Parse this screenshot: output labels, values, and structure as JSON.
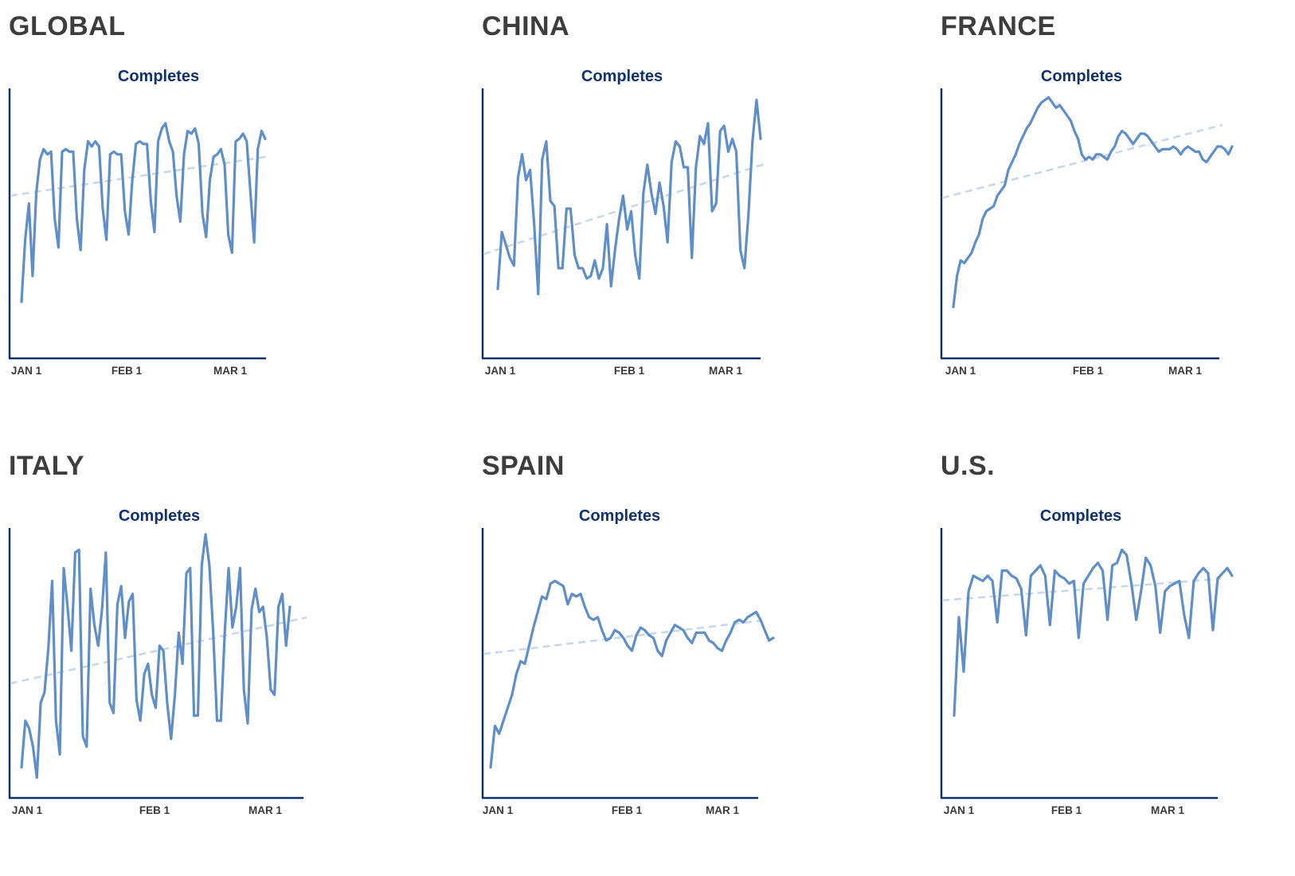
{
  "colors": {
    "series": "#5f8ec8",
    "trend": "#c7d6e8",
    "axis": "#10316b",
    "title": "#10316b",
    "region": "#3d3d3f"
  },
  "chart_data": [
    {
      "region": "GLOBAL",
      "type": "line",
      "title": "Completes",
      "x_ticks": [
        "JAN 1",
        "FEB 1",
        "MAR 1"
      ],
      "trend": "linear",
      "values": [
        0.2,
        0.44,
        0.58,
        0.3,
        0.62,
        0.75,
        0.79,
        0.77,
        0.78,
        0.52,
        0.41,
        0.78,
        0.79,
        0.78,
        0.78,
        0.52,
        0.4,
        0.71,
        0.82,
        0.8,
        0.82,
        0.8,
        0.56,
        0.44,
        0.77,
        0.78,
        0.77,
        0.77,
        0.55,
        0.46,
        0.67,
        0.81,
        0.82,
        0.81,
        0.81,
        0.59,
        0.47,
        0.82,
        0.87,
        0.89,
        0.82,
        0.78,
        0.61,
        0.51,
        0.77,
        0.86,
        0.85,
        0.87,
        0.81,
        0.54,
        0.45,
        0.67,
        0.76,
        0.77,
        0.79,
        0.73,
        0.46,
        0.39,
        0.82,
        0.83,
        0.85,
        0.82,
        0.62,
        0.43,
        0.79,
        0.86,
        0.83
      ]
    },
    {
      "region": "CHINA",
      "type": "line",
      "title": "Completes",
      "x_ticks": [
        "JAN 1",
        "FEB 1",
        "MAR 1"
      ],
      "trend": "linear",
      "values": [
        0.25,
        0.47,
        0.42,
        0.37,
        0.34,
        0.68,
        0.77,
        0.67,
        0.71,
        0.5,
        0.23,
        0.75,
        0.82,
        0.59,
        0.57,
        0.33,
        0.33,
        0.56,
        0.56,
        0.38,
        0.33,
        0.33,
        0.29,
        0.3,
        0.36,
        0.29,
        0.33,
        0.5,
        0.26,
        0.4,
        0.52,
        0.61,
        0.48,
        0.55,
        0.38,
        0.29,
        0.62,
        0.73,
        0.62,
        0.54,
        0.66,
        0.57,
        0.43,
        0.74,
        0.82,
        0.8,
        0.72,
        0.72,
        0.37,
        0.72,
        0.84,
        0.81,
        0.89,
        0.55,
        0.58,
        0.86,
        0.88,
        0.78,
        0.83,
        0.78,
        0.4,
        0.33,
        0.54,
        0.82,
        0.98,
        0.83
      ]
    },
    {
      "region": "FRANCE",
      "type": "line",
      "title": "Completes",
      "x_ticks": [
        "JAN 1",
        "FEB 1",
        "MAR 1"
      ],
      "trend": "linear",
      "values": [
        0.18,
        0.3,
        0.36,
        0.35,
        0.37,
        0.39,
        0.43,
        0.46,
        0.52,
        0.55,
        0.56,
        0.57,
        0.61,
        0.63,
        0.65,
        0.71,
        0.74,
        0.77,
        0.81,
        0.84,
        0.87,
        0.89,
        0.92,
        0.95,
        0.97,
        0.98,
        0.99,
        0.97,
        0.95,
        0.96,
        0.94,
        0.92,
        0.9,
        0.86,
        0.83,
        0.77,
        0.75,
        0.76,
        0.75,
        0.77,
        0.77,
        0.76,
        0.75,
        0.78,
        0.8,
        0.84,
        0.86,
        0.85,
        0.83,
        0.81,
        0.83,
        0.85,
        0.85,
        0.84,
        0.82,
        0.8,
        0.78,
        0.79,
        0.79,
        0.79,
        0.8,
        0.79,
        0.77,
        0.79,
        0.8,
        0.79,
        0.78,
        0.78,
        0.75,
        0.74,
        0.76,
        0.78,
        0.8,
        0.8,
        0.79,
        0.77,
        0.8
      ]
    },
    {
      "region": "ITALY",
      "type": "line",
      "title": "Completes",
      "x_ticks": [
        "JAN 1",
        "FEB 1",
        "MAR 1"
      ],
      "trend": "linear",
      "values": [
        0.1,
        0.28,
        0.25,
        0.18,
        0.06,
        0.35,
        0.39,
        0.56,
        0.82,
        0.28,
        0.15,
        0.87,
        0.72,
        0.55,
        0.93,
        0.94,
        0.22,
        0.18,
        0.79,
        0.65,
        0.57,
        0.71,
        0.93,
        0.35,
        0.31,
        0.73,
        0.8,
        0.6,
        0.74,
        0.77,
        0.36,
        0.28,
        0.46,
        0.5,
        0.38,
        0.33,
        0.57,
        0.55,
        0.35,
        0.21,
        0.38,
        0.62,
        0.5,
        0.85,
        0.87,
        0.3,
        0.3,
        0.88,
        1.0,
        0.88,
        0.62,
        0.28,
        0.28,
        0.62,
        0.87,
        0.64,
        0.72,
        0.87,
        0.4,
        0.27,
        0.71,
        0.79,
        0.7,
        0.72,
        0.6,
        0.4,
        0.38,
        0.72,
        0.77,
        0.57,
        0.72
      ]
    },
    {
      "region": "SPAIN",
      "type": "line",
      "title": "Completes",
      "x_ticks": [
        "JAN 1",
        "FEB 1",
        "MAR 1"
      ],
      "trend": "linear",
      "values": [
        0.1,
        0.26,
        0.23,
        0.28,
        0.33,
        0.38,
        0.46,
        0.51,
        0.5,
        0.57,
        0.64,
        0.7,
        0.76,
        0.75,
        0.81,
        0.82,
        0.81,
        0.8,
        0.73,
        0.77,
        0.76,
        0.77,
        0.72,
        0.68,
        0.67,
        0.68,
        0.63,
        0.59,
        0.6,
        0.63,
        0.62,
        0.6,
        0.57,
        0.55,
        0.61,
        0.64,
        0.63,
        0.61,
        0.6,
        0.55,
        0.53,
        0.59,
        0.62,
        0.65,
        0.64,
        0.63,
        0.6,
        0.58,
        0.62,
        0.62,
        0.62,
        0.59,
        0.58,
        0.56,
        0.55,
        0.59,
        0.62,
        0.66,
        0.67,
        0.66,
        0.68,
        0.69,
        0.7,
        0.67,
        0.63,
        0.59,
        0.6
      ]
    },
    {
      "region": "U.S.",
      "type": "line",
      "title": "Completes",
      "x_ticks": [
        "JAN 1",
        "FEB 1",
        "MAR 1"
      ],
      "trend": "linear",
      "values": [
        0.3,
        0.68,
        0.47,
        0.78,
        0.84,
        0.83,
        0.82,
        0.84,
        0.82,
        0.66,
        0.86,
        0.86,
        0.84,
        0.83,
        0.79,
        0.61,
        0.84,
        0.86,
        0.88,
        0.84,
        0.65,
        0.86,
        0.84,
        0.83,
        0.81,
        0.82,
        0.6,
        0.81,
        0.84,
        0.87,
        0.89,
        0.86,
        0.67,
        0.88,
        0.89,
        0.94,
        0.92,
        0.81,
        0.67,
        0.78,
        0.91,
        0.88,
        0.8,
        0.62,
        0.78,
        0.8,
        0.81,
        0.82,
        0.69,
        0.6,
        0.82,
        0.85,
        0.87,
        0.85,
        0.63,
        0.83,
        0.85,
        0.87,
        0.84
      ]
    }
  ]
}
